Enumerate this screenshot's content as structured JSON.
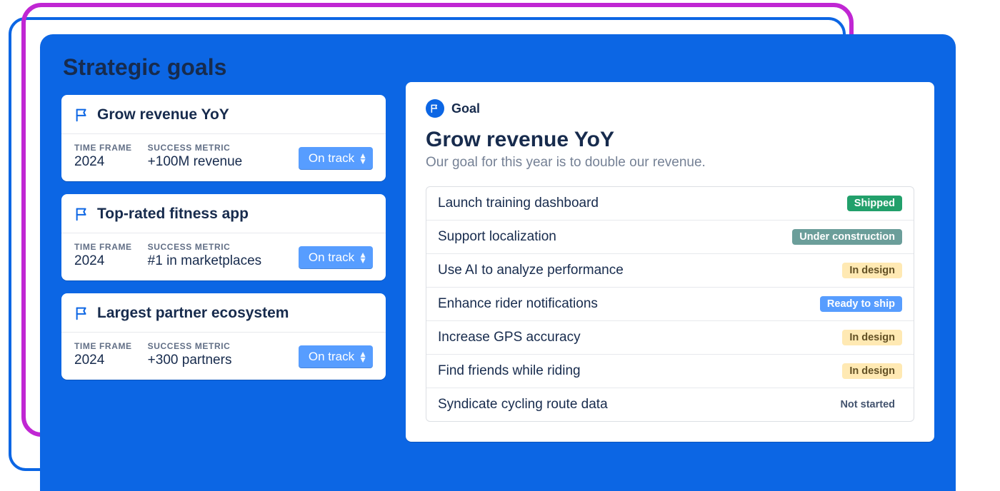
{
  "palette": {
    "panel_bg": "#0c66e4",
    "pink_border": "#c026d3",
    "blue_border": "#0c66e4",
    "text_heading": "#172b4d",
    "text_muted": "#758195",
    "card_bg": "#ffffff",
    "divider": "#e7e9ed",
    "chip_bg": "#579dff",
    "chip_text": "#ffffff"
  },
  "page": {
    "title": "Strategic goals"
  },
  "labels": {
    "time_frame": "TIME FRAME",
    "success_metric": "SUCCESS METRIC"
  },
  "goals": [
    {
      "title": "Grow revenue YoY",
      "time_frame": "2024",
      "metric": "+100M revenue",
      "status": "On track"
    },
    {
      "title": "Top-rated fitness app",
      "time_frame": "2024",
      "metric": "#1 in marketplaces",
      "status": "On track"
    },
    {
      "title": "Largest partner ecosystem",
      "time_frame": "2024",
      "metric": "+300 partners",
      "status": "On track"
    }
  ],
  "detail": {
    "type_label": "Goal",
    "title": "Grow revenue YoY",
    "subtitle": "Our goal for this year is to double our revenue.",
    "initiatives": [
      {
        "name": "Launch training dashboard",
        "status": "Shipped",
        "status_bg": "#22a06b",
        "status_fg": "#ffffff"
      },
      {
        "name": "Support localization",
        "status": "Under construction",
        "status_bg": "#6b9e9a",
        "status_fg": "#ffffff"
      },
      {
        "name": "Use AI to analyze performance",
        "status": "In design",
        "status_bg": "#ffe9b3",
        "status_fg": "#625024"
      },
      {
        "name": "Enhance rider notifications",
        "status": "Ready to ship",
        "status_bg": "#579dff",
        "status_fg": "#ffffff"
      },
      {
        "name": "Increase GPS accuracy",
        "status": "In design",
        "status_bg": "#ffe9b3",
        "status_fg": "#625024"
      },
      {
        "name": "Find friends while riding",
        "status": "In design",
        "status_bg": "#ffe9b3",
        "status_fg": "#625024"
      },
      {
        "name": "Syndicate cycling route data",
        "status": "Not started",
        "status_bg": "transparent",
        "status_fg": "#44546f"
      }
    ]
  }
}
